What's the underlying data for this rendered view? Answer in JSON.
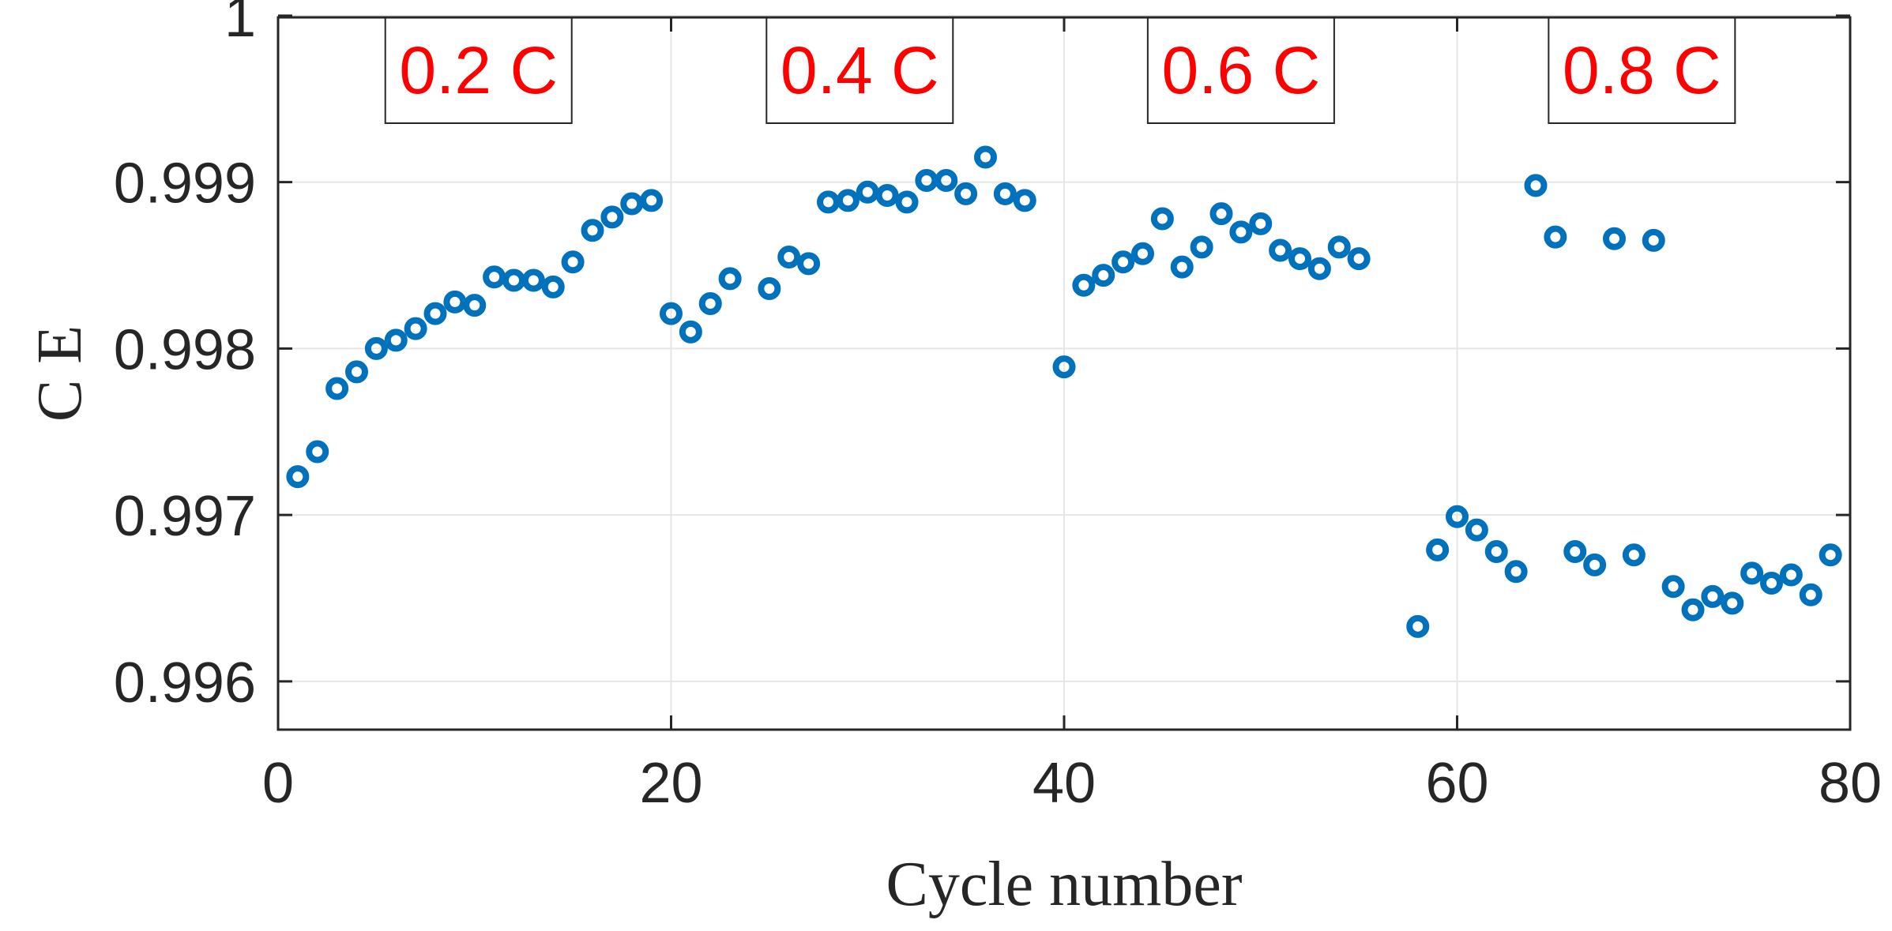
{
  "chart_data": {
    "type": "scatter",
    "title": "",
    "xlabel": "Cycle number",
    "ylabel": "C E",
    "xlim": [
      0,
      80
    ],
    "ylim": [
      0.99571,
      0.99999
    ],
    "xticks": [
      0,
      20,
      40,
      60,
      80
    ],
    "xtick_labels": [
      "0",
      "20",
      "40",
      "60",
      "80"
    ],
    "yticks": [
      0.996,
      0.997,
      0.998,
      0.999,
      1.0
    ],
    "ytick_labels": [
      "0.996",
      "0.997",
      "0.998",
      "0.999",
      "1"
    ],
    "grid": true,
    "marker_color": "#0072BD",
    "annotation_color": "#FF0000",
    "annotations": [
      {
        "text": "0.2 C",
        "x_center": 10.2
      },
      {
        "text": "0.4 C",
        "x_center": 29.6
      },
      {
        "text": "0.6 C",
        "x_center": 49.0
      },
      {
        "text": "0.8 C",
        "x_center": 69.4
      }
    ],
    "series": [
      {
        "name": "CE",
        "x": [
          1,
          2,
          3,
          4,
          5,
          6,
          7,
          8,
          9,
          10,
          11,
          12,
          13,
          14,
          15,
          16,
          17,
          18,
          19,
          20,
          21,
          22,
          23,
          25,
          26,
          27,
          28,
          29,
          30,
          31,
          32,
          33,
          34,
          35,
          36,
          37,
          38,
          40,
          41,
          42,
          43,
          44,
          45,
          46,
          47,
          48,
          49,
          50,
          51,
          52,
          53,
          54,
          55,
          58,
          59,
          60,
          61,
          62,
          63,
          64,
          65,
          66,
          67,
          68,
          69,
          70,
          71,
          72,
          73,
          74,
          75,
          76,
          77,
          78,
          79
        ],
        "y": [
          0.99723,
          0.99738,
          0.99776,
          0.99786,
          0.998,
          0.99805,
          0.99812,
          0.99821,
          0.99828,
          0.99826,
          0.99843,
          0.99841,
          0.99841,
          0.99837,
          0.99852,
          0.99871,
          0.99879,
          0.99887,
          0.99889,
          0.99821,
          0.9981,
          0.99827,
          0.99842,
          0.99836,
          0.99855,
          0.99851,
          0.99888,
          0.99889,
          0.99894,
          0.99892,
          0.99888,
          0.99901,
          0.99901,
          0.99893,
          0.99915,
          0.99893,
          0.99889,
          0.99789,
          0.99838,
          0.99844,
          0.99852,
          0.99857,
          0.99878,
          0.99849,
          0.99861,
          0.99881,
          0.9987,
          0.99875,
          0.99859,
          0.99854,
          0.99848,
          0.99861,
          0.99854,
          0.99633,
          0.99679,
          0.99699,
          0.99691,
          0.99678,
          0.99666,
          0.99898,
          0.99867,
          0.99678,
          0.9967,
          0.99866,
          0.99676,
          0.99865,
          0.99657,
          0.99643,
          0.99651,
          0.99647,
          0.99665,
          0.99659,
          0.99664,
          0.99652,
          0.99676
        ]
      }
    ]
  }
}
